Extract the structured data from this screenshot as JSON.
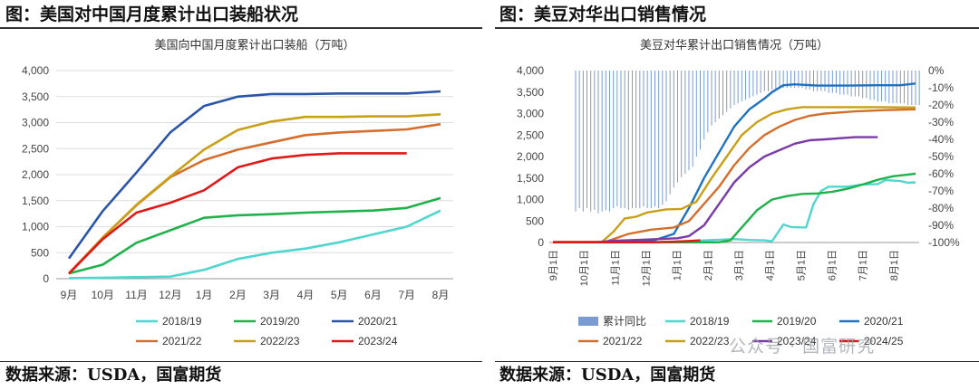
{
  "left_panel": {
    "heading": "图：美国对中国月度累计出口装船状况",
    "source": "数据来源：USDA，国富期货"
  },
  "right_panel": {
    "heading": "图：美豆对华出口销售情况",
    "source": "数据来源：USDA，国富期货"
  },
  "watermark": "公众号 · 国富研究",
  "chart_data": [
    {
      "type": "line",
      "title": "美国向中国月度累计出口装船（万吨）",
      "categories": [
        "9月",
        "10月",
        "11月",
        "12月",
        "1月",
        "2月",
        "3月",
        "4月",
        "5月",
        "6月",
        "7月",
        "8月"
      ],
      "ylim": [
        0,
        4000
      ],
      "yticks": [
        "0",
        "500",
        "1,000",
        "1,500",
        "2,000",
        "2,500",
        "3,000",
        "3,500",
        "4,000"
      ],
      "legend_position": "bottom",
      "series": [
        {
          "name": "2018/19",
          "color": "#4fd6cf",
          "values": [
            10,
            20,
            30,
            40,
            170,
            380,
            500,
            580,
            700,
            850,
            1000,
            1310
          ]
        },
        {
          "name": "2019/20",
          "color": "#1fb24a",
          "values": [
            100,
            270,
            690,
            930,
            1170,
            1220,
            1240,
            1270,
            1290,
            1310,
            1360,
            1550
          ]
        },
        {
          "name": "2020/21",
          "color": "#2a55a9",
          "values": [
            390,
            1300,
            2040,
            2810,
            3320,
            3500,
            3550,
            3550,
            3560,
            3560,
            3560,
            3600
          ]
        },
        {
          "name": "2021/22",
          "color": "#d46e2c",
          "values": [
            100,
            790,
            1410,
            1950,
            2280,
            2480,
            2620,
            2760,
            2810,
            2840,
            2870,
            2970
          ]
        },
        {
          "name": "2022/23",
          "color": "#c8a016",
          "values": [
            90,
            790,
            1420,
            1960,
            2480,
            2860,
            3020,
            3110,
            3110,
            3120,
            3120,
            3160
          ]
        },
        {
          "name": "2023/24",
          "color": "#e01818",
          "values": [
            100,
            760,
            1270,
            1460,
            1700,
            2140,
            2310,
            2380,
            2410,
            2410,
            2410,
            null
          ]
        }
      ]
    },
    {
      "type": "line",
      "title": "美豆对华累计出口销售情况（万吨）",
      "categories": [
        "9月1日",
        "10月1日",
        "11月1日",
        "12月1日",
        "1月1日",
        "2月1日",
        "3月1日",
        "4月1日",
        "5月1日",
        "6月1日",
        "7月1日",
        "8月1日"
      ],
      "ylim": [
        0,
        4000
      ],
      "y2lim": [
        -100,
        0
      ],
      "yticks": [
        "0",
        "500",
        "1,000",
        "1,500",
        "2,000",
        "2,500",
        "3,000",
        "3,500",
        "4,000"
      ],
      "y2ticks": [
        "0%",
        "-10%",
        "-20%",
        "-30%",
        "-40%",
        "-50%",
        "-60%",
        "-70%",
        "-80%",
        "-90%",
        "-100%"
      ],
      "legend_position": "bottom",
      "bar_series": {
        "name": "累计同比",
        "color": "#7a9bd0",
        "weeks": [
          6,
          7,
          8,
          9,
          10,
          11,
          12,
          13,
          14,
          15,
          16,
          17,
          18,
          19,
          20,
          21,
          22,
          23,
          24,
          25,
          26,
          27,
          28,
          29,
          30,
          31,
          32,
          33,
          34,
          35,
          36,
          37,
          38,
          39,
          40,
          41,
          42,
          43,
          44,
          45,
          46,
          47,
          48,
          49,
          50,
          51,
          52,
          53,
          54,
          55,
          56,
          57,
          58,
          59,
          60,
          61,
          62,
          63,
          64,
          65,
          66,
          67,
          68,
          69,
          70,
          71,
          72,
          73,
          74,
          75,
          76,
          77,
          78,
          79,
          80,
          81,
          82,
          83,
          84,
          85,
          86,
          87,
          88,
          89,
          90,
          91,
          92,
          93,
          94,
          95,
          96,
          97
        ],
        "values": [
          -82,
          -80,
          -82,
          -80,
          -82,
          -81,
          -83,
          -82,
          -81,
          -82,
          -80,
          -79,
          -80,
          -80,
          -81,
          -80,
          -80,
          -80,
          -79,
          -80,
          -80,
          -79,
          -80,
          -78,
          -76,
          -72,
          -68,
          -65,
          -62,
          -60,
          -58,
          -56,
          -50,
          -46,
          -40,
          -36,
          -32,
          -30,
          -28,
          -26,
          -24,
          -22,
          -20,
          -19,
          -18,
          -17,
          -16,
          -15,
          -14,
          -13,
          -12,
          -12,
          -11,
          -11,
          -10,
          -10,
          -10,
          -10,
          -10,
          -10,
          -10,
          -11,
          -11,
          -12,
          -12,
          -12,
          -12,
          -13,
          -13,
          -13,
          -14,
          -14,
          -14,
          -15,
          -15,
          -15,
          -16,
          -16,
          -17,
          -17,
          -18,
          -18,
          -18,
          -19,
          -19,
          -19,
          -19,
          -19,
          -20,
          -20,
          -20,
          -20
        ]
      },
      "series": [
        {
          "name": "2018/19",
          "color": "#4fd6cf",
          "points": [
            [
              0,
              10
            ],
            [
              30,
              10
            ],
            [
              48,
              80
            ],
            [
              52,
              60
            ],
            [
              56,
              50
            ],
            [
              58,
              30
            ],
            [
              61,
              420
            ],
            [
              63,
              360
            ],
            [
              67,
              350
            ],
            [
              69,
              900
            ],
            [
              71,
              1200
            ],
            [
              73,
              1300
            ],
            [
              78,
              1300
            ],
            [
              82,
              1350
            ],
            [
              86,
              1360
            ],
            [
              88,
              1450
            ],
            [
              92,
              1430
            ],
            [
              94,
              1390
            ],
            [
              96,
              1400
            ]
          ]
        },
        {
          "name": "2019/20",
          "color": "#1fb24a",
          "points": [
            [
              0,
              5
            ],
            [
              44,
              5
            ],
            [
              47,
              50
            ],
            [
              50,
              350
            ],
            [
              54,
              750
            ],
            [
              58,
              1000
            ],
            [
              62,
              1080
            ],
            [
              66,
              1130
            ],
            [
              70,
              1140
            ],
            [
              74,
              1180
            ],
            [
              78,
              1250
            ],
            [
              82,
              1350
            ],
            [
              86,
              1460
            ],
            [
              90,
              1540
            ],
            [
              94,
              1580
            ],
            [
              96,
              1600
            ]
          ]
        },
        {
          "name": "2020/21",
          "color": "#1f72bf",
          "points": [
            [
              0,
              10
            ],
            [
              18,
              10
            ],
            [
              26,
              30
            ],
            [
              32,
              200
            ],
            [
              36,
              800
            ],
            [
              40,
              1500
            ],
            [
              44,
              2100
            ],
            [
              48,
              2700
            ],
            [
              52,
              3100
            ],
            [
              56,
              3350
            ],
            [
              58,
              3500
            ],
            [
              61,
              3660
            ],
            [
              64,
              3680
            ],
            [
              70,
              3650
            ],
            [
              78,
              3650
            ],
            [
              86,
              3660
            ],
            [
              92,
              3660
            ],
            [
              96,
              3700
            ]
          ]
        },
        {
          "name": "2021/22",
          "color": "#d46e2c",
          "points": [
            [
              0,
              10
            ],
            [
              14,
              20
            ],
            [
              20,
              200
            ],
            [
              26,
              300
            ],
            [
              32,
              350
            ],
            [
              36,
              500
            ],
            [
              40,
              900
            ],
            [
              44,
              1300
            ],
            [
              48,
              1800
            ],
            [
              52,
              2200
            ],
            [
              56,
              2500
            ],
            [
              60,
              2700
            ],
            [
              64,
              2850
            ],
            [
              68,
              2950
            ],
            [
              72,
              3000
            ],
            [
              80,
              3050
            ],
            [
              88,
              3080
            ],
            [
              96,
              3100
            ]
          ]
        },
        {
          "name": "2022/23",
          "color": "#c8a016",
          "points": [
            [
              0,
              10
            ],
            [
              13,
              20
            ],
            [
              16,
              250
            ],
            [
              19,
              560
            ],
            [
              22,
              600
            ],
            [
              25,
              700
            ],
            [
              30,
              770
            ],
            [
              34,
              780
            ],
            [
              38,
              950
            ],
            [
              42,
              1500
            ],
            [
              46,
              2000
            ],
            [
              50,
              2500
            ],
            [
              54,
              2800
            ],
            [
              58,
              3000
            ],
            [
              62,
              3100
            ],
            [
              66,
              3150
            ],
            [
              70,
              3150
            ],
            [
              78,
              3150
            ],
            [
              86,
              3150
            ],
            [
              96,
              3140
            ]
          ]
        },
        {
          "name": "2023/24",
          "color": "#7a3aa8",
          "points": [
            [
              0,
              5
            ],
            [
              12,
              10
            ],
            [
              16,
              40
            ],
            [
              22,
              60
            ],
            [
              28,
              80
            ],
            [
              33,
              100
            ],
            [
              36,
              150
            ],
            [
              40,
              400
            ],
            [
              44,
              900
            ],
            [
              48,
              1400
            ],
            [
              52,
              1750
            ],
            [
              56,
              2000
            ],
            [
              60,
              2150
            ],
            [
              64,
              2300
            ],
            [
              68,
              2380
            ],
            [
              72,
              2400
            ],
            [
              80,
              2450
            ],
            [
              86,
              2450
            ]
          ]
        },
        {
          "name": "2024/25",
          "color": "#e01818",
          "points": [
            [
              0,
              5
            ],
            [
              26,
              5
            ],
            [
              32,
              20
            ],
            [
              37,
              40
            ],
            [
              39,
              50
            ]
          ]
        }
      ]
    }
  ]
}
